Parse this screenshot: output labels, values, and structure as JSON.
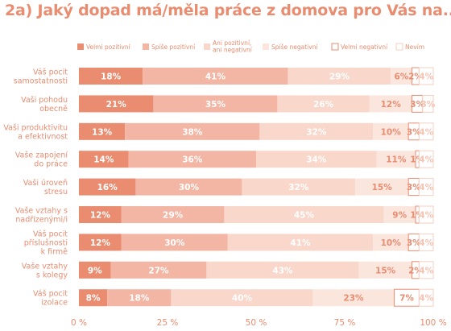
{
  "chart_data": {
    "type": "bar",
    "orientation": "horizontal",
    "stacked": true,
    "title": "2a) Jaký dopad má/měla práce z domova pro Vás na...",
    "categories": [
      [
        "Váš pocit",
        "samostatnosti"
      ],
      [
        "Vaši pohodu",
        "obecně"
      ],
      [
        "Vaši produktivitu",
        "a efektivnost"
      ],
      [
        "Vaše zapojení",
        "do práce"
      ],
      [
        "Vaši úroveň",
        "stresu"
      ],
      [
        "Vaše vztahy s",
        "nadřízenými/i"
      ],
      [
        "Váš pocit",
        "příslušnosti",
        "k firmě"
      ],
      [
        "Vaše vztahy",
        "s kolegy"
      ],
      [
        "Váš pocit",
        "izolace"
      ]
    ],
    "series": [
      {
        "name": "Velmi pozitivní",
        "values": [
          18,
          21,
          13,
          14,
          16,
          12,
          12,
          9,
          8
        ]
      },
      {
        "name": "Spíše pozitivní",
        "values": [
          41,
          35,
          38,
          36,
          30,
          29,
          30,
          27,
          18
        ]
      },
      {
        "name": "Ani pozitivní,\nani negativní",
        "values": [
          29,
          26,
          32,
          34,
          32,
          45,
          41,
          43,
          40
        ]
      },
      {
        "name": "Spíše negativní",
        "values": [
          6,
          12,
          10,
          11,
          15,
          9,
          10,
          15,
          23
        ]
      },
      {
        "name": "Velmi negativní",
        "values": [
          2,
          3,
          3,
          1,
          3,
          1,
          3,
          2,
          7
        ]
      },
      {
        "name": "Nevím",
        "values": [
          4,
          3,
          4,
          4,
          4,
          4,
          4,
          4,
          4
        ]
      }
    ],
    "colors": [
      "#e98c70",
      "#f3b6a4",
      "#f9d7cb",
      "#fbe6de",
      "#e98c70",
      "#f6cfc2"
    ],
    "label_colors": [
      "#ffffff",
      "#ffffff",
      "#ffffff",
      "#e98c70",
      "#e98c70",
      "#f6c2b2"
    ],
    "xlim": [
      0,
      100
    ],
    "xticks": [
      0,
      25,
      50,
      75,
      100
    ],
    "xtick_labels": [
      "0 %",
      "25 %",
      "50 %",
      "75 %",
      "100 %"
    ],
    "legend_position": "top",
    "grid": false
  }
}
